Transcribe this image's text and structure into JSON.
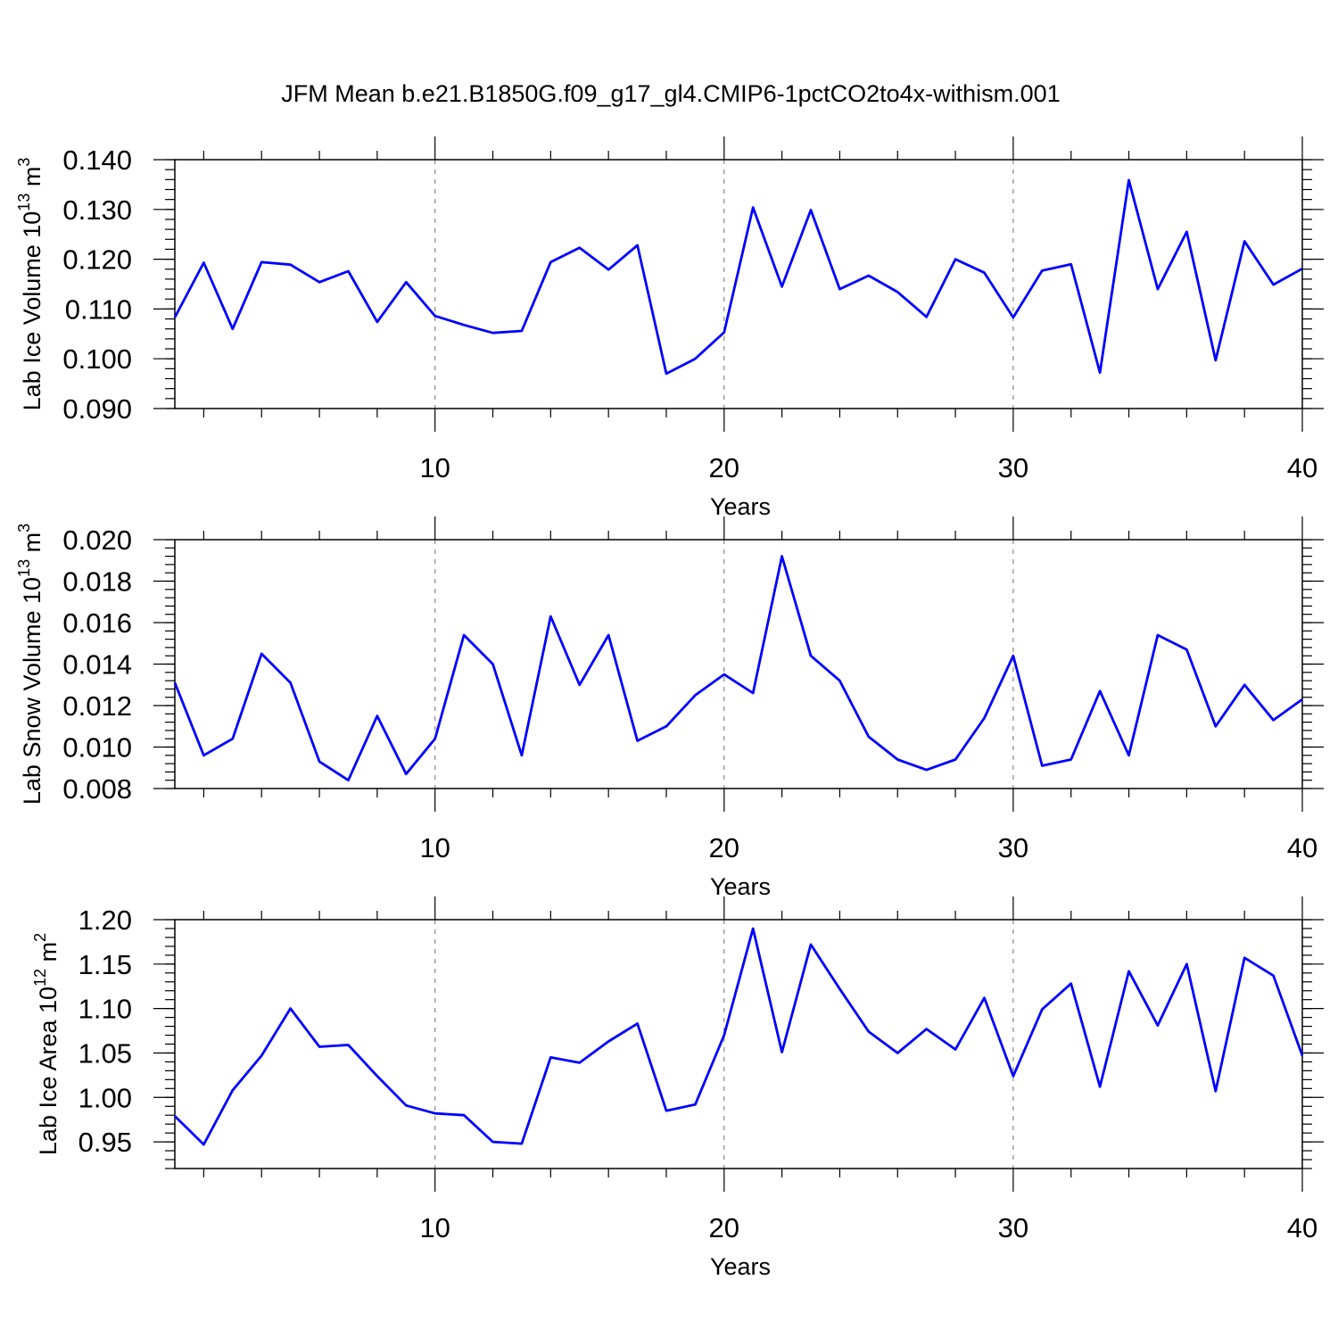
{
  "figure": {
    "title": "JFM Mean b.e21.B1850G.f09_g17_gl4.CMIP6-1pctCO2to4x-withism.001"
  },
  "chart_data": [
    {
      "type": "line",
      "title": "JFM Mean b.e21.B1850G.f09_g17_gl4.CMIP6-1pctCO2to4x-withism.001",
      "xlabel": "Years",
      "ylabel": {
        "main": "Lab Ice Volume 10",
        "exp": "13",
        "unit": " m",
        "unit_exp": "3"
      },
      "xlim": [
        1,
        40
      ],
      "ylim": [
        0.09,
        0.14
      ],
      "x_ticks": [
        10,
        20,
        30,
        40
      ],
      "x_tick_labels": [
        "10",
        "20",
        "30",
        "40"
      ],
      "x_minor_step": 2,
      "y_ticks": [
        0.09,
        0.1,
        0.11,
        0.12,
        0.13,
        0.14
      ],
      "y_tick_labels": [
        "0.090",
        "0.100",
        "0.110",
        "0.120",
        "0.130",
        "0.140"
      ],
      "y_minor_step": 0.002,
      "grid": "dashed vertical at major x ticks",
      "color": "#0000ff",
      "x": [
        1,
        2,
        3,
        4,
        5,
        6,
        7,
        8,
        9,
        10,
        11,
        12,
        13,
        14,
        15,
        16,
        17,
        18,
        19,
        20,
        21,
        22,
        23,
        24,
        25,
        26,
        27,
        28,
        29,
        30,
        31,
        32,
        33,
        34,
        35,
        36,
        37,
        38,
        39,
        40
      ],
      "series": [
        {
          "values": [
            0.1083,
            0.1193,
            0.106,
            0.1194,
            0.1189,
            0.1154,
            0.1176,
            0.1074,
            0.1154,
            0.1086,
            0.1068,
            0.1052,
            0.1056,
            0.1194,
            0.1223,
            0.1179,
            0.1228,
            0.097,
            0.1,
            0.1053,
            0.1304,
            0.1145,
            0.1299,
            0.114,
            0.1167,
            0.1134,
            0.1084,
            0.12,
            0.1173,
            0.1083,
            0.1177,
            0.119,
            0.0972,
            0.1359,
            0.114,
            0.1255,
            0.0997,
            0.1236,
            0.1149,
            0.1181
          ]
        }
      ]
    },
    {
      "type": "line",
      "xlabel": "Years",
      "ylabel": {
        "main": "Lab Snow Volume 10",
        "exp": "13",
        "unit": " m",
        "unit_exp": "3"
      },
      "xlim": [
        1,
        40
      ],
      "ylim": [
        0.008,
        0.02
      ],
      "x_ticks": [
        10,
        20,
        30,
        40
      ],
      "x_tick_labels": [
        "10",
        "20",
        "30",
        "40"
      ],
      "x_minor_step": 2,
      "y_ticks": [
        0.008,
        0.01,
        0.012,
        0.014,
        0.016,
        0.018,
        0.02
      ],
      "y_tick_labels": [
        "0.008",
        "0.010",
        "0.012",
        "0.014",
        "0.016",
        "0.018",
        "0.020"
      ],
      "y_minor_step": 0.0004,
      "grid": "dashed vertical at major x ticks",
      "color": "#0000ff",
      "x": [
        1,
        2,
        3,
        4,
        5,
        6,
        7,
        8,
        9,
        10,
        11,
        12,
        13,
        14,
        15,
        16,
        17,
        18,
        19,
        20,
        21,
        22,
        23,
        24,
        25,
        26,
        27,
        28,
        29,
        30,
        31,
        32,
        33,
        34,
        35,
        36,
        37,
        38,
        39,
        40
      ],
      "series": [
        {
          "values": [
            0.0131,
            0.0096,
            0.0104,
            0.0145,
            0.0131,
            0.0093,
            0.0084,
            0.0115,
            0.0087,
            0.0104,
            0.0154,
            0.014,
            0.0096,
            0.0163,
            0.013,
            0.0154,
            0.0103,
            0.011,
            0.0125,
            0.0135,
            0.0126,
            0.0192,
            0.0144,
            0.0132,
            0.0105,
            0.0094,
            0.0089,
            0.0094,
            0.0114,
            0.0144,
            0.0091,
            0.0094,
            0.0127,
            0.0096,
            0.0154,
            0.0147,
            0.011,
            0.013,
            0.0113,
            0.0123
          ]
        }
      ]
    },
    {
      "type": "line",
      "xlabel": "Years",
      "ylabel": {
        "main": "Lab Ice Area 10",
        "exp": "12",
        "unit": " m",
        "unit_exp": "2"
      },
      "xlim": [
        1,
        40
      ],
      "ylim": [
        0.92,
        1.2
      ],
      "x_ticks": [
        10,
        20,
        30,
        40
      ],
      "x_tick_labels": [
        "10",
        "20",
        "30",
        "40"
      ],
      "x_minor_step": 2,
      "y_ticks": [
        0.95,
        1.0,
        1.05,
        1.1,
        1.15,
        1.2
      ],
      "y_tick_labels": [
        "0.95",
        "1.00",
        "1.05",
        "1.10",
        "1.15",
        "1.20"
      ],
      "y_minor_step": 0.01,
      "grid": "dashed vertical at major x ticks",
      "color": "#0000ff",
      "x": [
        1,
        2,
        3,
        4,
        5,
        6,
        7,
        8,
        9,
        10,
        11,
        12,
        13,
        14,
        15,
        16,
        17,
        18,
        19,
        20,
        21,
        22,
        23,
        24,
        25,
        26,
        27,
        28,
        29,
        30,
        31,
        32,
        33,
        34,
        35,
        36,
        37,
        38,
        39,
        40
      ],
      "series": [
        {
          "values": [
            0.979,
            0.947,
            1.008,
            1.047,
            1.1,
            1.057,
            1.059,
            1.024,
            0.991,
            0.982,
            0.98,
            0.95,
            0.948,
            1.045,
            1.039,
            1.063,
            1.083,
            0.985,
            0.992,
            1.07,
            1.19,
            1.051,
            1.172,
            1.122,
            1.074,
            1.05,
            1.077,
            1.054,
            1.112,
            1.024,
            1.099,
            1.128,
            1.012,
            1.142,
            1.081,
            1.15,
            1.007,
            1.157,
            1.137,
            1.047
          ]
        }
      ]
    }
  ]
}
